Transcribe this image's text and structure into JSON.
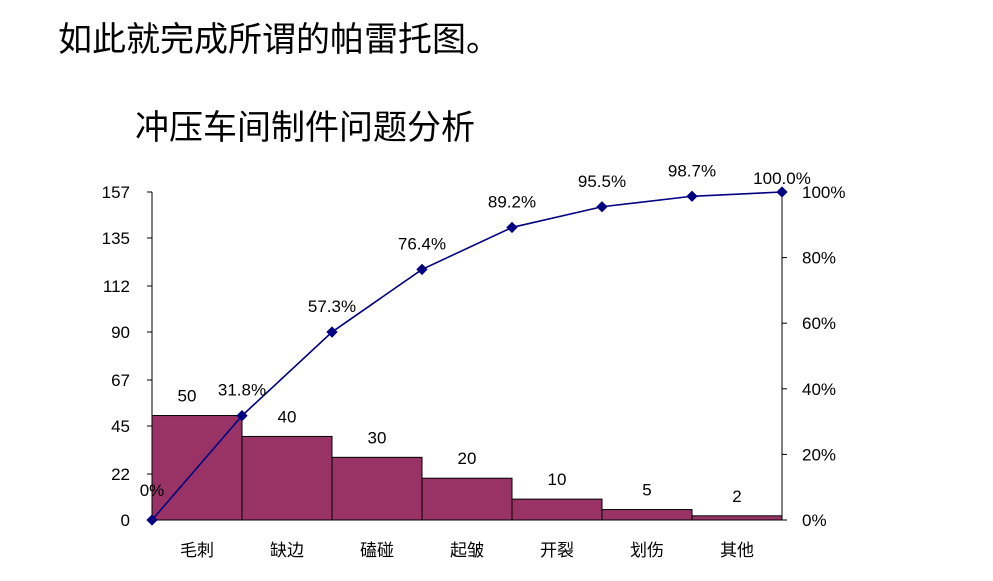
{
  "page": {
    "heading": "如此就完成所谓的帕雷托图。"
  },
  "chart_data": {
    "type": "bar",
    "title": "冲压车间制件问题分析",
    "categories": [
      "毛刺",
      "缺边",
      "磕碰",
      "起皱",
      "开裂",
      "划伤",
      "其他"
    ],
    "series": [
      {
        "type": "bar",
        "values": [
          50,
          40,
          30,
          20,
          10,
          5,
          2
        ]
      },
      {
        "type": "line",
        "axis": "right",
        "start_label": "0%",
        "values": [
          31.8,
          57.3,
          76.4,
          89.2,
          95.5,
          98.7,
          100.0
        ],
        "labels": [
          "31.8%",
          "57.3%",
          "76.4%",
          "89.2%",
          "95.5%",
          "98.7%",
          "100.0%"
        ]
      }
    ],
    "y_left": {
      "ticks": [
        0,
        22,
        45,
        67,
        90,
        112,
        135,
        157
      ],
      "ylim": [
        0,
        157
      ]
    },
    "y_right": {
      "ticks": [
        "0%",
        "20%",
        "40%",
        "60%",
        "80%",
        "100%"
      ],
      "ylim": [
        0,
        100
      ]
    },
    "colors": {
      "bar": "#993366",
      "line": "#000080"
    }
  }
}
